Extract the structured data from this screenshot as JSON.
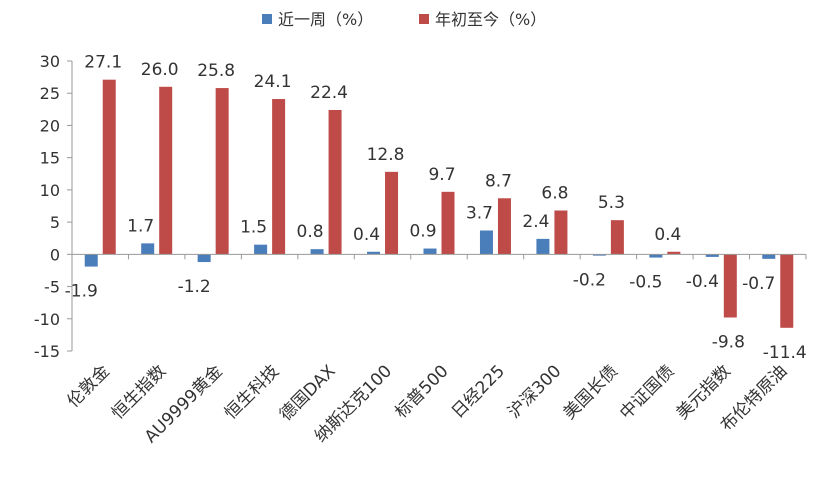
{
  "chart_data": {
    "type": "bar",
    "categories": [
      "伦敦金",
      "恒生指数",
      "AU9999黄金",
      "恒生科技",
      "德国DAX",
      "纳斯达克100",
      "标普500",
      "日经225",
      "沪深300",
      "美国长债",
      "中证国债",
      "美元指数",
      "布伦特原油"
    ],
    "series": [
      {
        "name": "近一周（%）",
        "color": "#4a7ebb",
        "values": [
          -1.9,
          1.7,
          -1.2,
          1.5,
          0.8,
          0.4,
          0.9,
          3.7,
          2.4,
          -0.2,
          -0.5,
          -0.4,
          -0.7
        ],
        "labels": [
          "-1.9",
          "1.7",
          "-1.2",
          "1.5",
          "0.8",
          "0.4",
          "0.9",
          "3.7",
          "2.4",
          "-0.2",
          "-0.5",
          "-0.4",
          "-0.7"
        ]
      },
      {
        "name": "年初至今（%）",
        "color": "#be4b48",
        "values": [
          27.1,
          26.0,
          25.8,
          24.1,
          22.4,
          12.8,
          9.7,
          8.7,
          6.8,
          5.3,
          0.4,
          -9.8,
          -11.4
        ],
        "labels": [
          "27.1",
          "26.0",
          "25.8",
          "24.1",
          "22.4",
          "12.8",
          "9.7",
          "8.7",
          "6.8",
          "5.3",
          "0.4",
          "-9.8",
          "-11.4"
        ]
      }
    ],
    "ylim": [
      -15,
      30
    ],
    "yticks": [
      "-15",
      "-10",
      "-5",
      "0",
      "5",
      "10",
      "15",
      "20",
      "25",
      "30"
    ],
    "grid": false,
    "legend": "top-center",
    "title": "",
    "xlabel": "",
    "ylabel": ""
  }
}
